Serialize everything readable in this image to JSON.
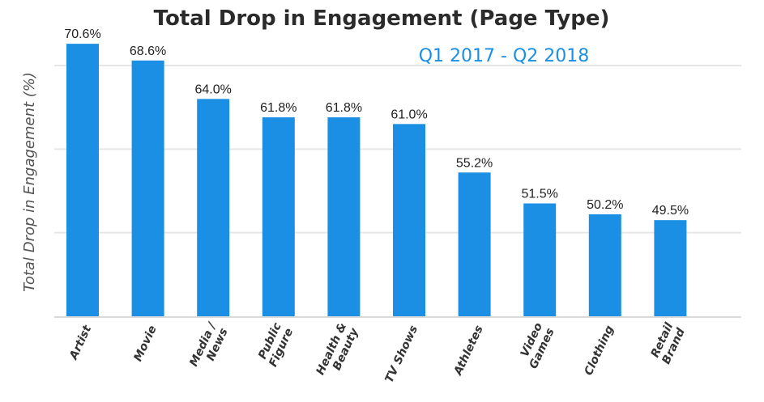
{
  "chart_data": {
    "type": "bar",
    "title": "Total Drop in Engagement (Page Type)",
    "subtitle": "Q1 2017 - Q2 2018",
    "xlabel": "",
    "ylabel": "Total Drop in Engagement (%)",
    "categories": [
      [
        "Artist"
      ],
      [
        "Movie"
      ],
      [
        "Media /",
        "News"
      ],
      [
        "Public",
        "Figure"
      ],
      [
        "Health &",
        "Beauty"
      ],
      [
        "TV Shows"
      ],
      [
        "Athletes"
      ],
      [
        "Video",
        "Games"
      ],
      [
        "Clothing"
      ],
      [
        "Retail",
        "Brand"
      ]
    ],
    "values": [
      70.6,
      68.6,
      64.0,
      61.8,
      61.8,
      61.0,
      55.2,
      51.5,
      50.2,
      49.5
    ],
    "value_labels": [
      "70.6%",
      "68.6%",
      "64.0%",
      "61.8%",
      "61.8%",
      "61.0%",
      "55.2%",
      "51.5%",
      "50.2%",
      "49.5%"
    ],
    "ylim": [
      38,
      71
    ],
    "gridlines": [
      48,
      58,
      68
    ],
    "grid": true,
    "legend": "none",
    "colors": {
      "bar": "#1a8fe3",
      "subtitle": "#1a8fe3",
      "grid": "#e6e6e6",
      "axis": "#d9d9d9"
    }
  }
}
